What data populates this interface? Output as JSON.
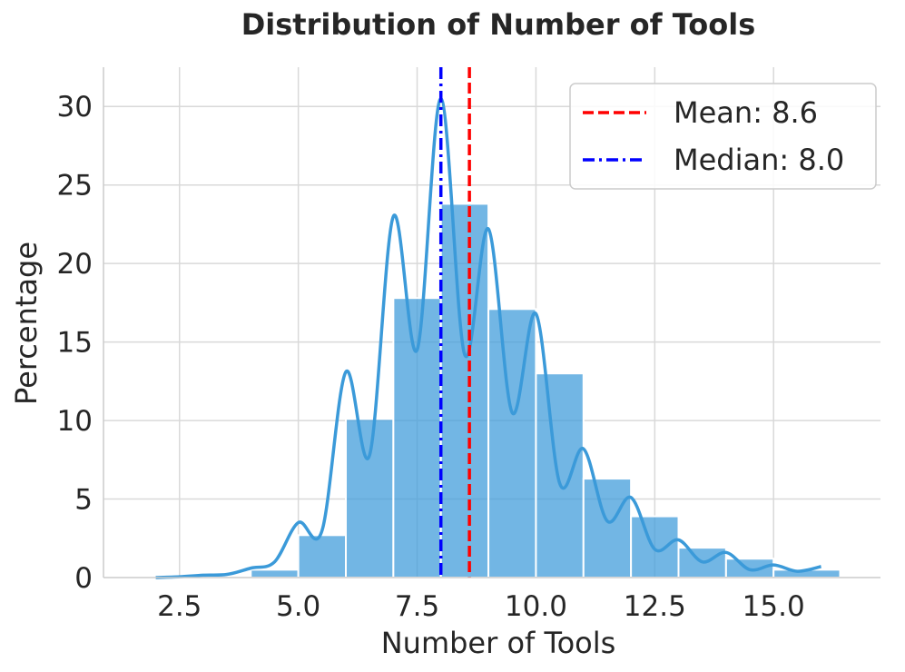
{
  "chart_data": {
    "type": "bar",
    "title": "Distribution of Number of Tools",
    "xlabel": "Number of Tools",
    "ylabel": "Percentage",
    "xlim": [
      0.9,
      17.25
    ],
    "ylim": [
      0,
      32.5
    ],
    "xticks": [
      2.5,
      5.0,
      7.5,
      10.0,
      12.5,
      15.0
    ],
    "xtick_labels": [
      "2.5",
      "5.0",
      "7.5",
      "10.0",
      "12.5",
      "15.0"
    ],
    "yticks": [
      0,
      5,
      10,
      15,
      20,
      25,
      30
    ],
    "ytick_labels": [
      "0",
      "5",
      "10",
      "15",
      "20",
      "25",
      "30"
    ],
    "grid": true,
    "legend_position": "top-right",
    "bar_color": "#3b9ad9",
    "kde_color": "#3b9ad9",
    "histogram": {
      "bin_edges": [
        2.0,
        3.0,
        4.0,
        5.0,
        6.0,
        7.0,
        8.0,
        9.0,
        10.0,
        11.0,
        12.0,
        13.0,
        14.0,
        15.0,
        16.4
      ],
      "bins": [
        {
          "x0": 2.0,
          "x1": 3.0,
          "value": 0.05
        },
        {
          "x0": 3.0,
          "x1": 4.0,
          "value": 0.1
        },
        {
          "x0": 4.0,
          "x1": 5.0,
          "value": 0.5
        },
        {
          "x0": 5.0,
          "x1": 6.0,
          "value": 2.7
        },
        {
          "x0": 6.0,
          "x1": 7.0,
          "value": 10.1
        },
        {
          "x0": 7.0,
          "x1": 8.0,
          "value": 17.8
        },
        {
          "x0": 8.0,
          "x1": 9.0,
          "value": 23.8
        },
        {
          "x0": 9.0,
          "x1": 10.0,
          "value": 17.1
        },
        {
          "x0": 10.0,
          "x1": 11.0,
          "value": 13.0
        },
        {
          "x0": 11.0,
          "x1": 12.0,
          "value": 6.3
        },
        {
          "x0": 12.0,
          "x1": 13.0,
          "value": 3.9
        },
        {
          "x0": 13.0,
          "x1": 14.0,
          "value": 1.9
        },
        {
          "x0": 14.0,
          "x1": 15.0,
          "value": 1.2
        },
        {
          "x0": 15.0,
          "x1": 16.4,
          "value": 0.5
        }
      ]
    },
    "kde": {
      "x": [
        2.0,
        2.5,
        3.0,
        3.5,
        4.0,
        4.5,
        5.0,
        5.5,
        6.0,
        6.5,
        7.0,
        7.5,
        8.0,
        8.5,
        9.0,
        9.5,
        10.0,
        10.5,
        11.0,
        11.5,
        12.0,
        12.5,
        13.0,
        13.5,
        14.0,
        14.5,
        15.0,
        15.5,
        16.0
      ],
      "y": [
        0.0,
        0.05,
        0.15,
        0.2,
        0.6,
        1.0,
        3.5,
        3.0,
        13.1,
        7.8,
        23.0,
        14.5,
        30.5,
        14.2,
        22.2,
        10.5,
        16.8,
        6.0,
        8.2,
        3.6,
        5.1,
        1.8,
        2.4,
        1.0,
        1.6,
        0.5,
        0.8,
        0.4,
        0.7
      ]
    },
    "lines": [
      {
        "name": "Mean: 8.6",
        "x": 8.6,
        "color": "#ff0000",
        "style": "dashed"
      },
      {
        "name": "Median: 8.0",
        "x": 8.0,
        "color": "#0000ff",
        "style": "dashdot"
      }
    ]
  }
}
